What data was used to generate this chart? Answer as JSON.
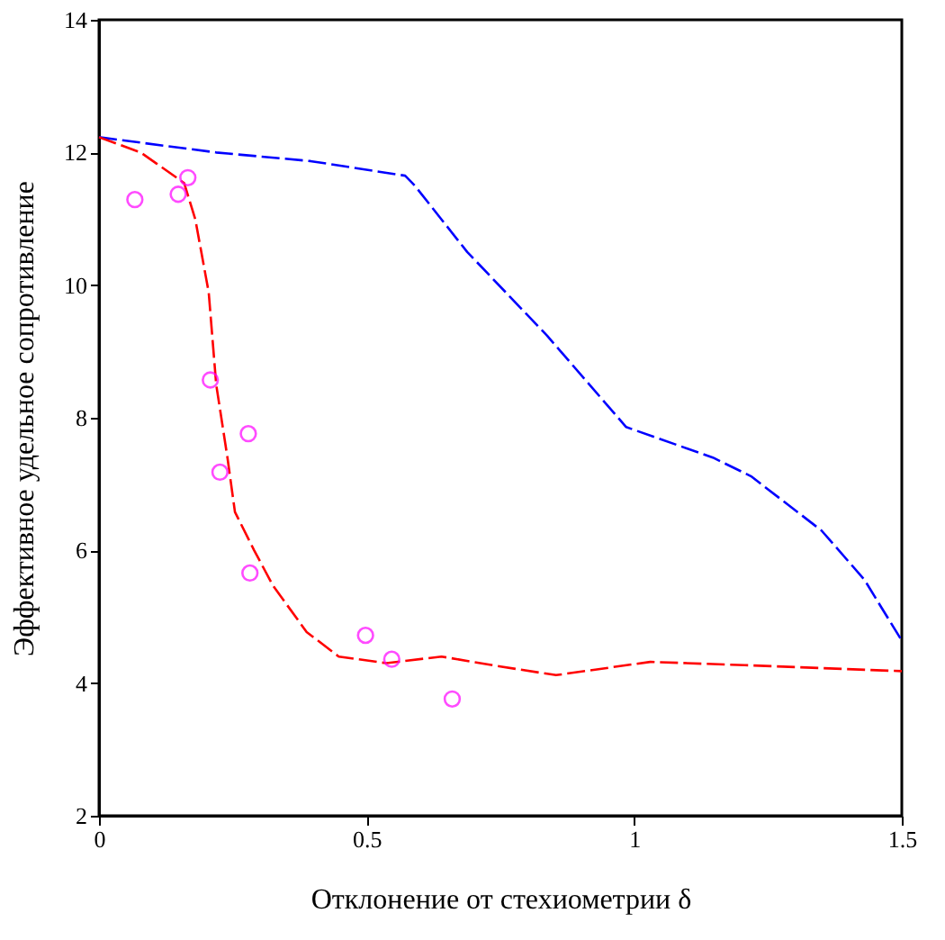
{
  "chart_data": {
    "type": "line",
    "xlabel": "Отклонение от стехиометрии δ",
    "ylabel": "Эффективное удельное сопротивление",
    "xlim": [
      0,
      1.5
    ],
    "ylim": [
      2,
      14
    ],
    "xticks": [
      0,
      0.5,
      1,
      1.5
    ],
    "yticks": [
      2,
      4,
      6,
      8,
      10,
      12,
      14
    ],
    "grid": false,
    "series": [
      {
        "line_style": "dashed",
        "color": "#0000ff",
        "x": [
          0,
          0.219,
          0.395,
          0.572,
          0.59,
          0.688,
          0.837,
          0.985,
          1.147,
          1.218,
          1.35,
          1.43,
          1.5
        ],
        "values": [
          12.23,
          12.0,
          11.87,
          11.65,
          11.5,
          10.5,
          9.24,
          7.86,
          7.4,
          7.12,
          6.3,
          5.56,
          4.64
        ]
      },
      {
        "line_style": "dashed",
        "color": "#ff0000",
        "x": [
          0,
          0.078,
          0.159,
          0.18,
          0.205,
          0.219,
          0.24,
          0.254,
          0.29,
          0.325,
          0.388,
          0.448,
          0.537,
          0.64,
          0.75,
          0.854,
          1.03,
          1.207,
          1.5
        ],
        "values": [
          12.23,
          12.0,
          11.54,
          10.99,
          9.89,
          8.5,
          7.4,
          6.58,
          6.0,
          5.47,
          4.77,
          4.4,
          4.3,
          4.4,
          4.25,
          4.12,
          4.32,
          4.27,
          4.18
        ]
      },
      {
        "type": "scatter",
        "marker": "circle",
        "color": "#ff00ff",
        "x": [
          0.067,
          0.148,
          0.166,
          0.208,
          0.226,
          0.279,
          0.282,
          0.498,
          0.547,
          0.66
        ],
        "values": [
          11.29,
          11.37,
          11.62,
          8.57,
          7.18,
          7.76,
          5.66,
          4.72,
          4.36,
          3.76
        ]
      }
    ]
  }
}
